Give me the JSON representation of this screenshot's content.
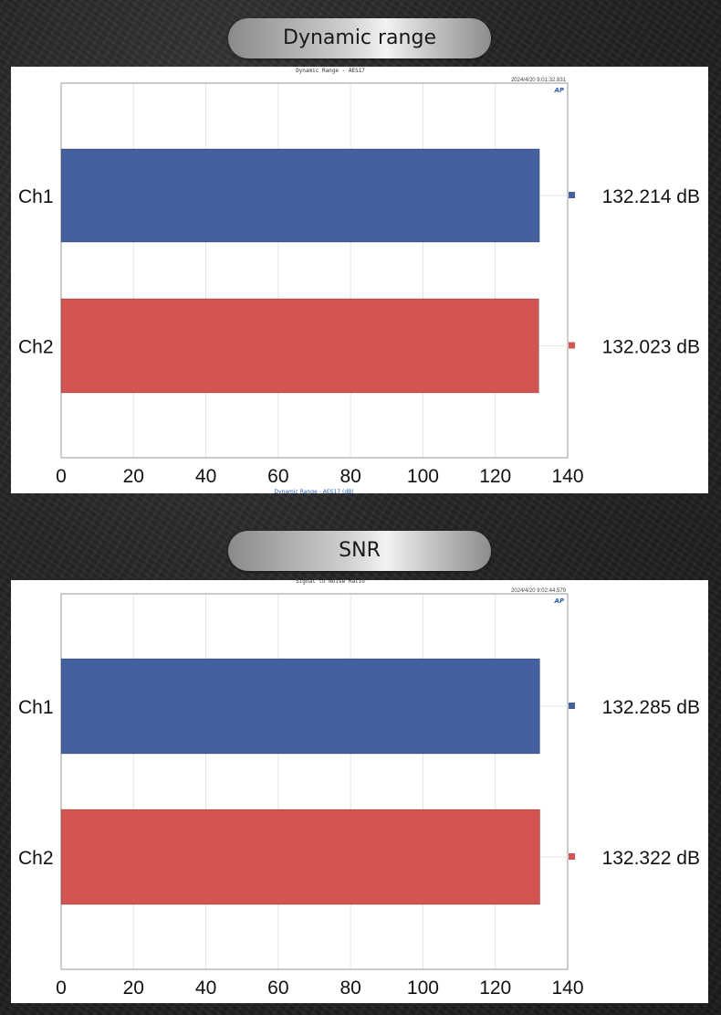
{
  "sections": [
    {
      "heading": "Dynamic range"
    },
    {
      "heading": "SNR"
    }
  ],
  "chart_data": [
    {
      "type": "bar",
      "orientation": "horizontal",
      "title": "Dynamic Range - AES17",
      "timestamp": "2024/4/20 9:01:32.831",
      "xlabel": "Dynamic Range - AES17 (dB)",
      "categories": [
        "Ch1",
        "Ch2"
      ],
      "values": [
        132.214,
        132.023
      ],
      "value_labels": [
        "132.214 dB",
        "132.023 dB"
      ],
      "colors": [
        "#44609e",
        "#d25552"
      ],
      "xlim": [
        0,
        140
      ],
      "xticks": [
        "0",
        "20",
        "40",
        "60",
        "80",
        "100",
        "120",
        "140"
      ],
      "grid": true,
      "logo": "AP"
    },
    {
      "type": "bar",
      "orientation": "horizontal",
      "title": "Signal to Noise Ratio",
      "timestamp": "2024/4/20 9:02:44.579",
      "xlabel": "",
      "categories": [
        "Ch1",
        "Ch2"
      ],
      "values": [
        132.285,
        132.322
      ],
      "value_labels": [
        "132.285 dB",
        "132.322 dB"
      ],
      "colors": [
        "#44609e",
        "#d25552"
      ],
      "xlim": [
        0,
        140
      ],
      "xticks": [
        "0",
        "20",
        "40",
        "60",
        "80",
        "100",
        "120",
        "140"
      ],
      "grid": true,
      "logo": "AP"
    }
  ]
}
